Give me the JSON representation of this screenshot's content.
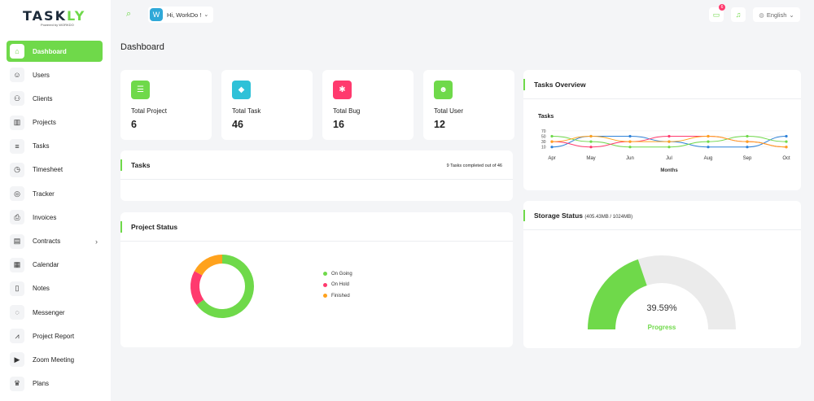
{
  "brand": {
    "logo_main": "TASK",
    "logo_accent": "LY",
    "powered_by": "Powered by WORKDO"
  },
  "colors": {
    "accent": "#6fd94a",
    "pink": "#ff3a6e",
    "teal": "#2fc1d8",
    "orange": "#ffa21d"
  },
  "sidebar": {
    "items": [
      {
        "label": "Dashboard",
        "icon": "home-icon",
        "glyph": "⌂",
        "active": true
      },
      {
        "label": "Users",
        "icon": "user-icon",
        "glyph": "☺"
      },
      {
        "label": "Clients",
        "icon": "clients-icon",
        "glyph": "⚇"
      },
      {
        "label": "Projects",
        "icon": "building-icon",
        "glyph": "▥"
      },
      {
        "label": "Tasks",
        "icon": "list-icon",
        "glyph": "≡"
      },
      {
        "label": "Timesheet",
        "icon": "clock-icon",
        "glyph": "◷"
      },
      {
        "label": "Tracker",
        "icon": "watch-icon",
        "glyph": "◎"
      },
      {
        "label": "Invoices",
        "icon": "printer-icon",
        "glyph": "⎙"
      },
      {
        "label": "Contracts",
        "icon": "contract-icon",
        "glyph": "▤",
        "has_submenu": true
      },
      {
        "label": "Calendar",
        "icon": "calendar-icon",
        "glyph": "▦"
      },
      {
        "label": "Notes",
        "icon": "clipboard-icon",
        "glyph": "▯"
      },
      {
        "label": "Messenger",
        "icon": "chat-icon",
        "glyph": "◌"
      },
      {
        "label": "Project Report",
        "icon": "chart-line-icon",
        "glyph": "⩘"
      },
      {
        "label": "Zoom Meeting",
        "icon": "video-icon",
        "glyph": "▶"
      },
      {
        "label": "Plans",
        "icon": "trophy-icon",
        "glyph": "♛"
      }
    ]
  },
  "topbar": {
    "avatar_letter": "W",
    "user_greeting": "Hi, WorkDo !",
    "message_count": "6",
    "language": "English"
  },
  "page": {
    "title": "Dashboard"
  },
  "stats": [
    {
      "label": "Total Project",
      "value": "6",
      "icon": "list-check-icon",
      "glyph": "☰",
      "color": "#6fd94a"
    },
    {
      "label": "Total Task",
      "value": "46",
      "icon": "tag-icon",
      "glyph": "◆",
      "color": "#2fc1d8"
    },
    {
      "label": "Total Bug",
      "value": "16",
      "icon": "bug-icon",
      "glyph": "✱",
      "color": "#ff3a6e"
    },
    {
      "label": "Total User",
      "value": "12",
      "icon": "users-icon",
      "glyph": "☻",
      "color": "#6fd94a"
    }
  ],
  "tasks_card": {
    "title": "Tasks",
    "summary": "9 Tasks completed out of 46"
  },
  "project_status": {
    "title": "Project Status",
    "legend": [
      {
        "label": "On Going",
        "color": "#6fd94a",
        "value": 65
      },
      {
        "label": "On Hold",
        "color": "#ff3a6e",
        "value": 18
      },
      {
        "label": "Finished",
        "color": "#ffa21d",
        "value": 17
      }
    ]
  },
  "tasks_overview": {
    "title": "Tasks Overview"
  },
  "storage": {
    "title": "Storage Status",
    "subtitle": "(405.43MB / 1024MB)",
    "percent_text": "39.59%",
    "percent": 39.59,
    "caption": "Progress"
  },
  "chart_data": {
    "type": "line",
    "title": "Tasks",
    "xlabel": "Months",
    "ylabel": "",
    "categories": [
      "Apr",
      "May",
      "Jun",
      "Jul",
      "Aug",
      "Sep",
      "Oct"
    ],
    "yticks": [
      70,
      50,
      30,
      10
    ],
    "ylim": [
      0,
      80
    ],
    "series": [
      {
        "values": [
          10,
          50,
          50,
          30,
          10,
          10,
          50
        ],
        "color": "#2f82d8"
      },
      {
        "values": [
          50,
          30,
          10,
          10,
          30,
          50,
          30
        ],
        "color": "#6fd94a"
      },
      {
        "values": [
          30,
          10,
          30,
          50,
          50,
          30,
          10
        ],
        "color": "#ff3a6e"
      },
      {
        "values": [
          30,
          50,
          30,
          30,
          50,
          30,
          10
        ],
        "color": "#ffa21d"
      }
    ]
  }
}
